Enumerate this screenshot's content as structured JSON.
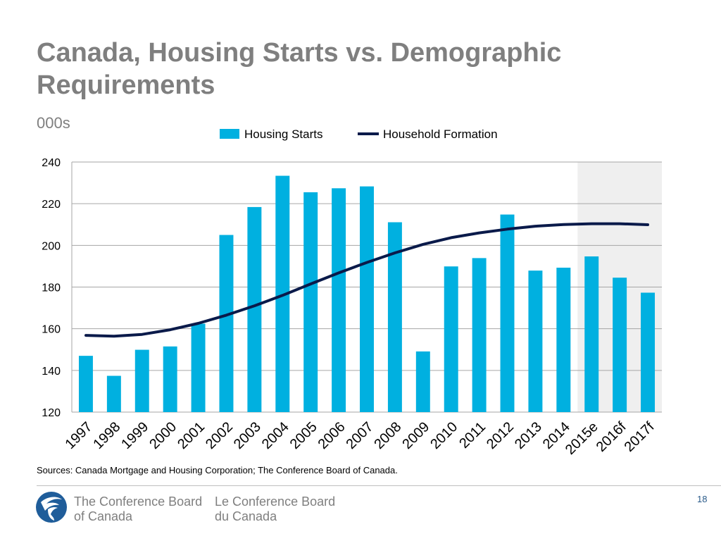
{
  "slide": {
    "title": "Canada, Housing Starts vs. Demographic Requirements",
    "unit_label": "000s",
    "sources": "Sources: Canada Mortgage and Housing Corporation; The Conference Board of Canada.",
    "page_number": "18"
  },
  "footer": {
    "org_en_line1": "The Conference Board",
    "org_en_line2": "of Canada",
    "org_fr_line1": "Le Conference Board",
    "org_fr_line2": "du Canada",
    "logo_icon": "conference-board-logo-icon"
  },
  "colors": {
    "bar": "#00b0e0",
    "line": "#0a1a4a",
    "forecast_shade": "#efefef",
    "grid": "#a6a6a6",
    "text_gray": "#7f7f7f"
  },
  "chart_data": {
    "type": "bar",
    "title": "Canada, Housing Starts vs. Demographic Requirements",
    "ylabel": "000s",
    "xlabel": "",
    "categories": [
      "1997",
      "1998",
      "1999",
      "2000",
      "2001",
      "2002",
      "2003",
      "2004",
      "2005",
      "2006",
      "2007",
      "2008",
      "2009",
      "2010",
      "2011",
      "2012",
      "2013",
      "2014",
      "2015e",
      "2016f",
      "2017f"
    ],
    "ylim": [
      120,
      240
    ],
    "yticks": [
      120,
      140,
      160,
      180,
      200,
      220,
      240
    ],
    "grid": true,
    "legend_position": "top",
    "forecast_categories": [
      "2015e",
      "2016f",
      "2017f"
    ],
    "series": [
      {
        "name": "Housing Starts",
        "kind": "bar",
        "values": [
          147.0,
          137.4,
          149.9,
          151.5,
          162.4,
          205.0,
          218.4,
          233.4,
          225.5,
          227.4,
          228.3,
          211.1,
          149.1,
          189.9,
          193.9,
          214.8,
          187.9,
          189.3,
          194.7,
          184.5,
          177.3
        ]
      },
      {
        "name": "Household Formation",
        "kind": "line",
        "values": [
          156.8,
          156.4,
          157.3,
          159.5,
          162.6,
          166.5,
          171.0,
          176.0,
          181.5,
          186.8,
          191.8,
          196.4,
          200.5,
          203.7,
          206.0,
          207.8,
          209.2,
          210.0,
          210.4,
          210.4,
          209.9
        ]
      }
    ]
  }
}
